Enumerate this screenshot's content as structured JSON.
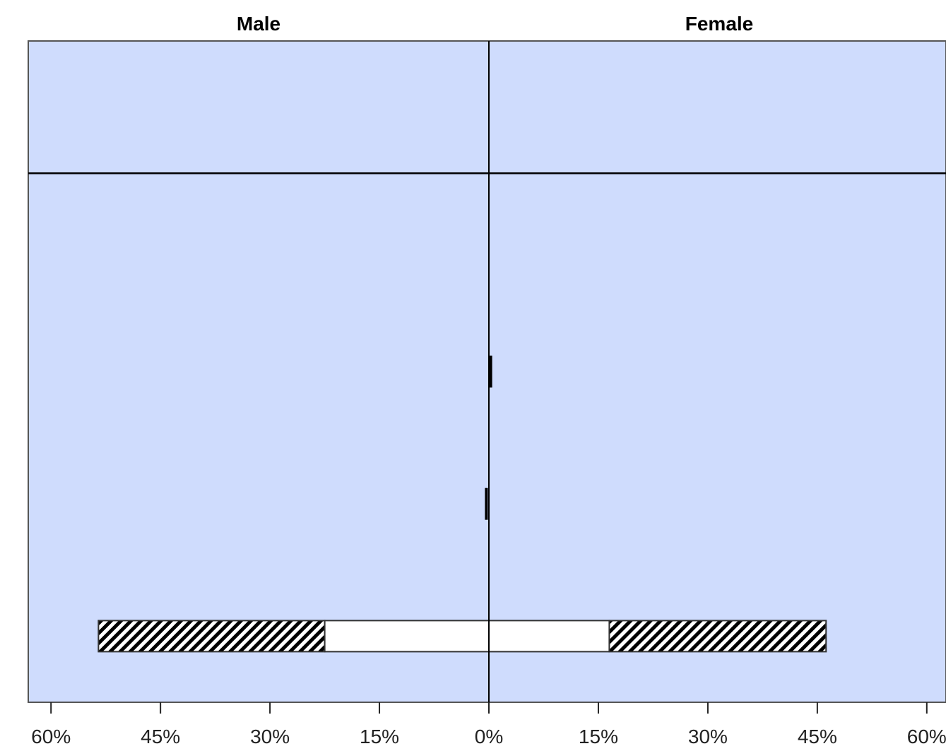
{
  "chart_data": {
    "type": "bar",
    "orientation": "horizontal-population-pyramid",
    "panels": [
      "Male",
      "Female"
    ],
    "x_ticks": [
      "60%",
      "45%",
      "30%",
      "15%",
      "0%",
      "15%",
      "30%",
      "45%",
      "60%"
    ],
    "xlim": [
      -63,
      63
    ],
    "rows": 5,
    "hline_after_row": 1,
    "bars": [
      {
        "row": 3,
        "side": "female",
        "segments": [
          {
            "from": 0,
            "to": 0.4,
            "fill": "solid"
          }
        ]
      },
      {
        "row": 4,
        "side": "male",
        "segments": [
          {
            "from": 0,
            "to": 0.3,
            "fill": "solid"
          }
        ]
      },
      {
        "row": 5,
        "side": "male",
        "segments": [
          {
            "from": 0,
            "to": 22.5,
            "fill": "white"
          },
          {
            "from": 22.5,
            "to": 53.5,
            "fill": "hatched"
          }
        ]
      },
      {
        "row": 5,
        "side": "female",
        "segments": [
          {
            "from": 0,
            "to": 16.5,
            "fill": "white"
          },
          {
            "from": 16.5,
            "to": 46.2,
            "fill": "hatched"
          }
        ]
      }
    ],
    "colors": {
      "background": "#cfdcfd",
      "axis": "#000000",
      "bar_white": "#ffffff",
      "hatch": "#000000",
      "solid": "#000000"
    },
    "grid": false,
    "legend": "none"
  }
}
